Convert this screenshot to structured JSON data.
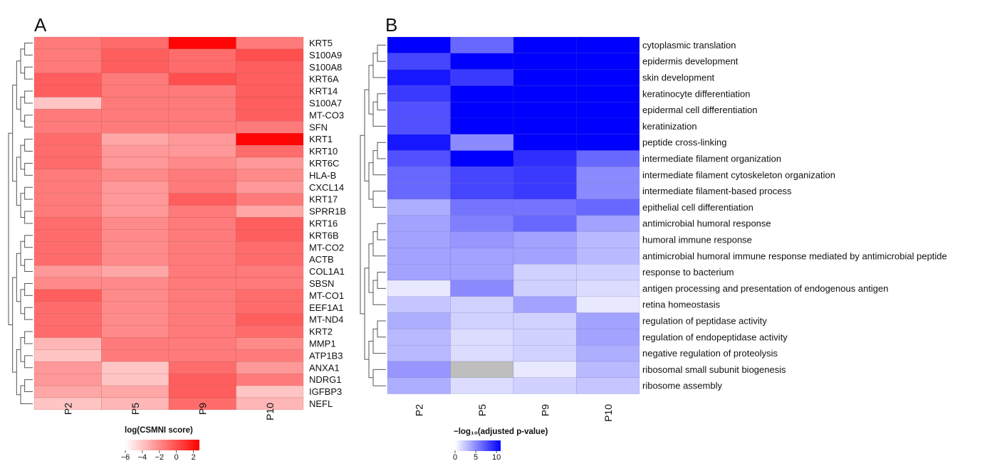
{
  "chart_data": [
    {
      "type": "heatmap",
      "panel": "A",
      "columns": [
        "P2",
        "P5",
        "P9",
        "P10"
      ],
      "rows": [
        "KRT5",
        "S100A9",
        "S100A8",
        "KRT6A",
        "KRT14",
        "S100A7",
        "MT-CO3",
        "SFN",
        "KRT1",
        "KRT10",
        "KRT6C",
        "HLA-B",
        "CXCL14",
        "KRT17",
        "SPRR1B",
        "KRT16",
        "KRT6B",
        "MT-CO2",
        "ACTB",
        "COL1A1",
        "SBSN",
        "MT-CO1",
        "EEF1A1",
        "MT-ND4",
        "KRT2",
        "MMP1",
        "ATP1B3",
        "ANXA1",
        "NDRG1",
        "IGFBP3",
        "NEFL"
      ],
      "values": [
        [
          -1.5,
          -1.0,
          2.5,
          -1.5
        ],
        [
          -1.5,
          -0.5,
          -1.0,
          0.0
        ],
        [
          -1.5,
          -0.5,
          -1.0,
          -0.5
        ],
        [
          -0.5,
          -1.5,
          0.0,
          -0.5
        ],
        [
          -0.5,
          -1.5,
          -1.5,
          -0.5
        ],
        [
          -4.0,
          -1.5,
          -1.5,
          -0.5
        ],
        [
          -1.5,
          -1.5,
          -1.5,
          -0.5
        ],
        [
          -1.5,
          -1.5,
          -1.5,
          -1.5
        ],
        [
          -1.0,
          -3.0,
          -2.5,
          2.5
        ],
        [
          -1.0,
          -2.5,
          -2.5,
          -1.0
        ],
        [
          -1.0,
          -2.5,
          -2.0,
          -2.5
        ],
        [
          -1.5,
          -2.0,
          -1.5,
          -2.0
        ],
        [
          -1.5,
          -2.5,
          -1.5,
          -2.5
        ],
        [
          -1.5,
          -2.5,
          -0.5,
          -1.5
        ],
        [
          -1.5,
          -2.5,
          -1.5,
          -3.0
        ],
        [
          -1.0,
          -2.0,
          -1.5,
          -0.5
        ],
        [
          -1.0,
          -2.0,
          -1.5,
          -0.5
        ],
        [
          -1.0,
          -2.0,
          -1.5,
          -1.0
        ],
        [
          -1.0,
          -2.0,
          -1.5,
          -1.0
        ],
        [
          -2.5,
          -3.0,
          -1.5,
          -1.5
        ],
        [
          -2.0,
          -2.0,
          -1.5,
          -1.5
        ],
        [
          -0.5,
          -2.0,
          -1.5,
          -1.0
        ],
        [
          -1.0,
          -2.0,
          -1.5,
          -1.0
        ],
        [
          -1.0,
          -2.0,
          -1.5,
          -0.5
        ],
        [
          -1.0,
          -2.0,
          -1.5,
          -1.0
        ],
        [
          -3.5,
          -1.5,
          -1.5,
          -2.0
        ],
        [
          -4.0,
          -1.5,
          -1.5,
          -1.5
        ],
        [
          -2.5,
          -4.0,
          -1.0,
          -2.5
        ],
        [
          -2.5,
          -4.0,
          -0.5,
          -1.5
        ],
        [
          -3.0,
          -3.0,
          -0.5,
          -4.0
        ],
        [
          -4.0,
          -3.5,
          -1.0,
          -3.5
        ]
      ],
      "legend": {
        "title": "log(CSMNI score)",
        "range": [
          -6,
          2.7
        ],
        "ticks": [
          -6,
          -4,
          -2,
          0,
          2
        ],
        "tick_labels": [
          "−6",
          "−4",
          "−2",
          "0",
          "2"
        ],
        "colors": [
          "#ffffff",
          "#ff0000"
        ]
      }
    },
    {
      "type": "heatmap",
      "panel": "B",
      "columns": [
        "P2",
        "P5",
        "P9",
        "P10"
      ],
      "rows": [
        "cytoplasmic translation",
        "epidermis development",
        "skin development",
        "keratinocyte differentiation",
        "epidermal cell differentiation",
        "keratinization",
        "peptide cross-linking",
        "intermediate filament organization",
        "intermediate filament cytoskeleton organization",
        "intermediate filament-based process",
        "epithelial cell differentiation",
        "antimicrobial humoral response",
        "humoral immune response",
        "antimicrobial humoral immune response mediated by antimicrobial peptide",
        "response to bacterium",
        "antigen processing and presentation of endogenous antigen",
        "retina homeostasis",
        "regulation of peptidase activity",
        "regulation of endopeptidase activity",
        "negative regulation of proteolysis",
        "ribosomal small subunit biogenesis",
        "ribosome assembly"
      ],
      "values": [
        [
          11,
          6.5,
          11,
          11
        ],
        [
          8,
          11,
          11,
          11
        ],
        [
          10,
          8.5,
          11,
          11
        ],
        [
          8.5,
          11,
          11,
          11
        ],
        [
          7.5,
          11,
          11,
          11
        ],
        [
          7.5,
          11,
          11,
          11
        ],
        [
          10,
          5,
          11,
          11
        ],
        [
          7.5,
          11,
          9,
          6.5
        ],
        [
          6.5,
          8,
          8.5,
          5
        ],
        [
          6.5,
          8,
          8.5,
          5
        ],
        [
          3.5,
          6,
          6,
          6.5
        ],
        [
          4,
          5.5,
          6.5,
          4
        ],
        [
          4,
          4.5,
          4,
          3
        ],
        [
          4,
          4,
          4,
          3
        ],
        [
          4,
          4,
          2,
          2
        ],
        [
          1,
          5,
          2,
          1.5
        ],
        [
          2.5,
          2,
          4,
          1
        ],
        [
          3.5,
          2,
          2,
          4
        ],
        [
          3,
          1.5,
          2,
          4
        ],
        [
          3,
          1.5,
          2,
          3.5
        ],
        [
          4.5,
          null,
          1,
          3
        ],
        [
          3.5,
          1.5,
          2,
          2.5
        ]
      ],
      "legend": {
        "title": "−log₁₀(adjusted p-value)",
        "range": [
          0,
          11
        ],
        "ticks": [
          0,
          5,
          10
        ],
        "tick_labels": [
          "0",
          "5",
          "10"
        ],
        "colors": [
          "#ffffff",
          "#0000ff"
        ]
      }
    }
  ],
  "colors": {
    "na_cell": "#bebebe",
    "grid_line_a": "#8a3a2a",
    "grid_line_b": "#5a5aa0"
  }
}
